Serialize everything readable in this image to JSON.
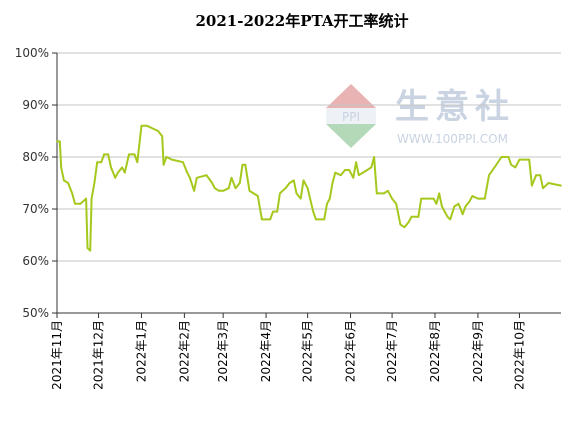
{
  "watermark": {
    "brand": "生意社",
    "url": "WWW.100PPI.COM",
    "logo_text": "PPI"
  },
  "chart_data": {
    "type": "line",
    "title": "2021-2022年PTA开工率统计",
    "xlabel": "",
    "ylabel": "",
    "ylim": [
      50,
      100
    ],
    "yticks": [
      "50%",
      "60%",
      "70%",
      "80%",
      "90%",
      "100%"
    ],
    "ytick_values": [
      50,
      60,
      70,
      80,
      90,
      100
    ],
    "grid": true,
    "legend": "none",
    "colors": {
      "line": "#a5c81d",
      "grid": "#c6c6c6",
      "axis": "#333333"
    },
    "x_domain": [
      "2021-11-01",
      "2022-10-31"
    ],
    "x_ticks": [
      {
        "date": "2021-11-01",
        "label": "2021年11月"
      },
      {
        "date": "2021-12-01",
        "label": "2021年12月"
      },
      {
        "date": "2022-01-01",
        "label": "2022年1月"
      },
      {
        "date": "2022-02-01",
        "label": "2022年2月"
      },
      {
        "date": "2022-03-01",
        "label": "2022年3月"
      },
      {
        "date": "2022-04-01",
        "label": "2022年4月"
      },
      {
        "date": "2022-05-01",
        "label": "2022年5月"
      },
      {
        "date": "2022-06-01",
        "label": "2022年6月"
      },
      {
        "date": "2022-07-01",
        "label": "2022年7月"
      },
      {
        "date": "2022-08-01",
        "label": "2022年8月"
      },
      {
        "date": "2022-09-01",
        "label": "2022年9月"
      },
      {
        "date": "2022-10-01",
        "label": "2022年10月"
      }
    ],
    "series": [
      {
        "values": [
          [
            "2021-11-01",
            83
          ],
          [
            "2021-11-03",
            83
          ],
          [
            "2021-11-04",
            78
          ],
          [
            "2021-11-06",
            75.5
          ],
          [
            "2021-11-09",
            75
          ],
          [
            "2021-11-12",
            73
          ],
          [
            "2021-11-14",
            71
          ],
          [
            "2021-11-18",
            71
          ],
          [
            "2021-11-20",
            71.5
          ],
          [
            "2021-11-22",
            72
          ],
          [
            "2021-11-23",
            62.5
          ],
          [
            "2021-11-25",
            62
          ],
          [
            "2021-11-26",
            72
          ],
          [
            "2021-11-28",
            75
          ],
          [
            "2021-11-30",
            79
          ],
          [
            "2021-12-03",
            79
          ],
          [
            "2021-12-05",
            80.5
          ],
          [
            "2021-12-08",
            80.5
          ],
          [
            "2021-12-10",
            78
          ],
          [
            "2021-12-13",
            76
          ],
          [
            "2021-12-15",
            77
          ],
          [
            "2021-12-18",
            78
          ],
          [
            "2021-12-20",
            77
          ],
          [
            "2021-12-23",
            80.5
          ],
          [
            "2021-12-27",
            80.5
          ],
          [
            "2021-12-29",
            79
          ],
          [
            "2022-01-01",
            86
          ],
          [
            "2022-01-05",
            86
          ],
          [
            "2022-01-09",
            85.5
          ],
          [
            "2022-01-13",
            85
          ],
          [
            "2022-01-16",
            84
          ],
          [
            "2022-01-17",
            78.5
          ],
          [
            "2022-01-19",
            80
          ],
          [
            "2022-01-23",
            79.5
          ],
          [
            "2022-01-31",
            79
          ],
          [
            "2022-02-03",
            77
          ],
          [
            "2022-02-05",
            76
          ],
          [
            "2022-02-08",
            73.5
          ],
          [
            "2022-02-10",
            76
          ],
          [
            "2022-02-17",
            76.5
          ],
          [
            "2022-02-21",
            75
          ],
          [
            "2022-02-23",
            74
          ],
          [
            "2022-02-26",
            73.5
          ],
          [
            "2022-03-01",
            73.5
          ],
          [
            "2022-03-05",
            74
          ],
          [
            "2022-03-07",
            76
          ],
          [
            "2022-03-10",
            74
          ],
          [
            "2022-03-13",
            75
          ],
          [
            "2022-03-15",
            78.5
          ],
          [
            "2022-03-17",
            78.5
          ],
          [
            "2022-03-20",
            73.5
          ],
          [
            "2022-03-23",
            73
          ],
          [
            "2022-03-26",
            72.5
          ],
          [
            "2022-03-29",
            68
          ],
          [
            "2022-04-04",
            68
          ],
          [
            "2022-04-06",
            69.5
          ],
          [
            "2022-04-09",
            69.5
          ],
          [
            "2022-04-11",
            73
          ],
          [
            "2022-04-15",
            74
          ],
          [
            "2022-04-18",
            75
          ],
          [
            "2022-04-21",
            75.5
          ],
          [
            "2022-04-23",
            73
          ],
          [
            "2022-04-26",
            72
          ],
          [
            "2022-04-28",
            75.5
          ],
          [
            "2022-05-01",
            74
          ],
          [
            "2022-05-05",
            69.5
          ],
          [
            "2022-05-07",
            68
          ],
          [
            "2022-05-13",
            68
          ],
          [
            "2022-05-15",
            71
          ],
          [
            "2022-05-17",
            72
          ],
          [
            "2022-05-19",
            75
          ],
          [
            "2022-05-21",
            77
          ],
          [
            "2022-05-25",
            76.5
          ],
          [
            "2022-05-28",
            77.5
          ],
          [
            "2022-05-31",
            77.5
          ],
          [
            "2022-06-03",
            76
          ],
          [
            "2022-06-05",
            79
          ],
          [
            "2022-06-07",
            76.5
          ],
          [
            "2022-06-10",
            77
          ],
          [
            "2022-06-13",
            77.5
          ],
          [
            "2022-06-16",
            78
          ],
          [
            "2022-06-18",
            80
          ],
          [
            "2022-06-20",
            73
          ],
          [
            "2022-06-25",
            73
          ],
          [
            "2022-06-28",
            73.5
          ],
          [
            "2022-07-01",
            72
          ],
          [
            "2022-07-04",
            71
          ],
          [
            "2022-07-07",
            67
          ],
          [
            "2022-07-10",
            66.5
          ],
          [
            "2022-07-13",
            67.5
          ],
          [
            "2022-07-15",
            68.5
          ],
          [
            "2022-07-20",
            68.5
          ],
          [
            "2022-07-22",
            72
          ],
          [
            "2022-07-27",
            72
          ],
          [
            "2022-07-31",
            72
          ],
          [
            "2022-08-02",
            71
          ],
          [
            "2022-08-04",
            73
          ],
          [
            "2022-08-06",
            70.5
          ],
          [
            "2022-08-10",
            68.5
          ],
          [
            "2022-08-12",
            68
          ],
          [
            "2022-08-15",
            70.5
          ],
          [
            "2022-08-18",
            71
          ],
          [
            "2022-08-21",
            69
          ],
          [
            "2022-08-23",
            70.5
          ],
          [
            "2022-08-26",
            71.5
          ],
          [
            "2022-08-28",
            72.5
          ],
          [
            "2022-09-01",
            72
          ],
          [
            "2022-09-06",
            72
          ],
          [
            "2022-09-09",
            76.5
          ],
          [
            "2022-09-13",
            78
          ],
          [
            "2022-09-18",
            80
          ],
          [
            "2022-09-23",
            80
          ],
          [
            "2022-09-25",
            78.5
          ],
          [
            "2022-09-28",
            78
          ],
          [
            "2022-10-01",
            79.5
          ],
          [
            "2022-10-08",
            79.5
          ],
          [
            "2022-10-10",
            74.5
          ],
          [
            "2022-10-13",
            76.5
          ],
          [
            "2022-10-16",
            76.5
          ],
          [
            "2022-10-18",
            74
          ],
          [
            "2022-10-22",
            75
          ],
          [
            "2022-10-31",
            74.5
          ]
        ]
      }
    ]
  }
}
